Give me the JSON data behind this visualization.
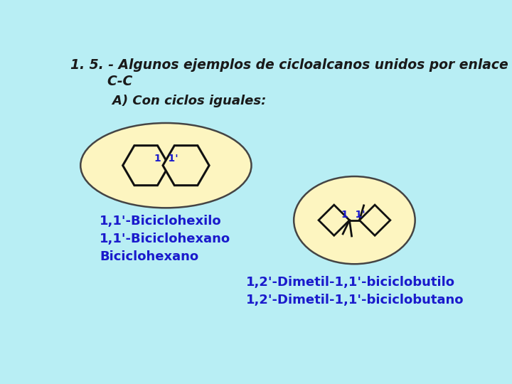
{
  "bg_color": "#b8eef4",
  "title_line1": "1. 5. - Algunos ejemplos de cicloalcanos unidos por enlace",
  "title_line2": "        C-C",
  "subtitle": "    A) Con ciclos iguales:",
  "title_color": "#1a1a1a",
  "subtitle_color": "#1a1a1a",
  "shape_fill": "#fdf5c0",
  "shape_stroke": "#111111",
  "ellipse1_fill": "#fdf5c0",
  "ellipse1_stroke": "#444444",
  "ellipse2_fill": "#fdf5c0",
  "ellipse2_stroke": "#444444",
  "label_color": "#1a1acc",
  "label1": "1,1'-Biciclohexilo\n1,1'-Biciclohexano\nBiciclohexano",
  "label2": "1,2'-Dimetil-1,1'-biciclobutilo\n1,2'-Dimetil-1,1'-biciclobutano",
  "num_label1": "1  1'",
  "num_label2": "1  1'"
}
